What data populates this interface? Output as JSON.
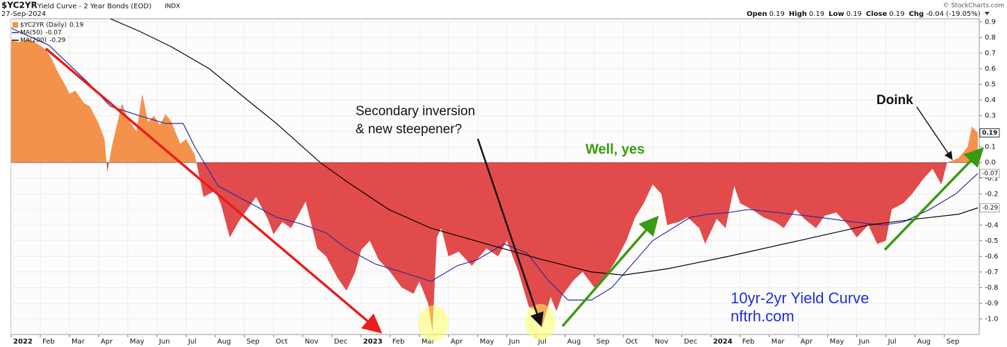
{
  "header": {
    "symbol": "$YC2YR",
    "description": "Yield Curve - 2 Year Bonds (EOD)",
    "exchange": "INDX",
    "date": "27-Sep-2024",
    "copyright": "© StockCharts.com",
    "quote": [
      {
        "label": "Open",
        "value": "0.19"
      },
      {
        "label": "High",
        "value": "0.19"
      },
      {
        "label": "Low",
        "value": "0.19"
      },
      {
        "label": "Close",
        "value": "0.19"
      },
      {
        "label": "Chg",
        "value": "-0.04 (-19.05%)"
      }
    ]
  },
  "chart_data": {
    "type": "area",
    "annotations": [
      "Secondary inversion",
      "& new steepener?",
      "Well, yes",
      "Doink",
      "10yr-2yr Yield Curve",
      "nftrh.com"
    ],
    "xlim": [
      0,
      33.2
    ],
    "ylim": [
      -1.1,
      0.92
    ],
    "grid": true,
    "xticks": [
      {
        "value": 0,
        "label": "2022"
      },
      {
        "value": 1,
        "label": "Feb"
      },
      {
        "value": 2,
        "label": "Mar"
      },
      {
        "value": 3,
        "label": "Apr"
      },
      {
        "value": 4,
        "label": "May"
      },
      {
        "value": 5,
        "label": "Jun"
      },
      {
        "value": 6,
        "label": "Jul"
      },
      {
        "value": 7,
        "label": "Aug"
      },
      {
        "value": 8,
        "label": "Sep"
      },
      {
        "value": 9,
        "label": "Oct"
      },
      {
        "value": 10,
        "label": "Nov"
      },
      {
        "value": 11,
        "label": "Dec"
      },
      {
        "value": 12,
        "label": "2023"
      },
      {
        "value": 13,
        "label": "Feb"
      },
      {
        "value": 14,
        "label": "Mar"
      },
      {
        "value": 15,
        "label": "Apr"
      },
      {
        "value": 16,
        "label": "May"
      },
      {
        "value": 17,
        "label": "Jun"
      },
      {
        "value": 18,
        "label": "Jul"
      },
      {
        "value": 19,
        "label": "Aug"
      },
      {
        "value": 20,
        "label": "Sep"
      },
      {
        "value": 21,
        "label": "Oct"
      },
      {
        "value": 22,
        "label": "Nov"
      },
      {
        "value": 23,
        "label": "Dec"
      },
      {
        "value": 24,
        "label": "2024"
      },
      {
        "value": 25,
        "label": "Feb"
      },
      {
        "value": 26,
        "label": "Mar"
      },
      {
        "value": 27,
        "label": "Apr"
      },
      {
        "value": 28,
        "label": "May"
      },
      {
        "value": 29,
        "label": "Jun"
      },
      {
        "value": 30,
        "label": "Jul"
      },
      {
        "value": 31,
        "label": "Aug"
      },
      {
        "value": 32,
        "label": "Sep"
      }
    ],
    "yticks": [
      0.9,
      0.8,
      0.7,
      0.6,
      0.5,
      0.4,
      0.3,
      0.2,
      0.1,
      {
        "value": 0,
        "label": "0.0"
      },
      -0.1,
      -0.2,
      -0.3,
      -0.4,
      -0.5,
      -0.6,
      -0.7,
      -0.8,
      -0.9,
      {
        "value": -1,
        "label": "-1.0"
      }
    ],
    "series": [
      {
        "name": "$YC2YR (Daily)",
        "color": "#f4924c",
        "negative_color": "#e24b4b",
        "x": [
          0,
          0.3,
          0.6,
          0.9,
          1.2,
          1.4,
          1.6,
          1.9,
          2.0,
          2.2,
          2.5,
          2.7,
          3.0,
          3.2,
          3.3,
          3.45,
          3.6,
          3.8,
          4.0,
          4.3,
          4.5,
          4.7,
          4.9,
          5.1,
          5.3,
          5.5,
          5.8,
          6.0,
          6.3,
          6.6,
          6.8,
          7.0,
          7.2,
          7.5,
          7.8,
          8.1,
          8.4,
          8.8,
          9.0,
          9.3,
          9.6,
          10.1,
          10.5,
          10.8,
          11.2,
          11.5,
          11.8,
          12.0,
          12.3,
          12.6,
          13.0,
          13.4,
          13.8,
          14.0,
          14.3,
          14.45,
          14.6,
          14.75,
          15.0,
          15.35,
          15.8,
          16.3,
          16.7,
          17.0,
          17.4,
          17.75,
          18.0,
          18.2,
          18.5,
          18.7,
          18.9,
          19.3,
          19.6,
          20.0,
          20.3,
          20.7,
          21.1,
          21.4,
          21.7,
          22.0,
          22.3,
          22.5,
          22.9,
          23.2,
          23.6,
          23.8,
          24.2,
          24.5,
          24.8,
          25.0,
          25.4,
          25.8,
          26.2,
          26.5,
          26.9,
          27.2,
          27.6,
          27.9,
          28.3,
          28.7,
          29.0,
          29.4,
          29.7,
          30.0,
          30.2,
          30.6,
          30.9,
          31.3,
          31.6,
          31.9,
          32.1,
          32.5,
          32.8,
          32.95,
          33.15
        ],
        "values": [
          0.78,
          0.77,
          0.79,
          0.76,
          0.72,
          0.66,
          0.58,
          0.48,
          0.44,
          0.46,
          0.38,
          0.36,
          0.25,
          0.15,
          -0.06,
          0.1,
          0.22,
          0.38,
          0.28,
          0.2,
          0.44,
          0.26,
          0.3,
          0.24,
          0.31,
          0.26,
          0.12,
          0.15,
          0.05,
          -0.22,
          -0.2,
          -0.18,
          -0.27,
          -0.48,
          -0.38,
          -0.3,
          -0.22,
          -0.36,
          -0.46,
          -0.38,
          -0.42,
          -0.25,
          -0.55,
          -0.6,
          -0.74,
          -0.82,
          -0.7,
          -0.56,
          -0.5,
          -0.62,
          -0.7,
          -0.8,
          -0.84,
          -0.76,
          -0.9,
          -1.08,
          -0.48,
          -0.42,
          -0.6,
          -0.57,
          -0.66,
          -0.55,
          -0.6,
          -0.5,
          -0.7,
          -0.92,
          -0.95,
          -1.06,
          -0.86,
          -0.95,
          -0.85,
          -0.75,
          -0.7,
          -0.8,
          -0.75,
          -0.64,
          -0.5,
          -0.35,
          -0.26,
          -0.14,
          -0.2,
          -0.4,
          -0.38,
          -0.35,
          -0.42,
          -0.52,
          -0.36,
          -0.42,
          -0.15,
          -0.26,
          -0.3,
          -0.35,
          -0.38,
          -0.42,
          -0.3,
          -0.36,
          -0.42,
          -0.34,
          -0.32,
          -0.4,
          -0.48,
          -0.4,
          -0.52,
          -0.5,
          -0.3,
          -0.26,
          -0.2,
          -0.1,
          -0.04,
          -0.14,
          0.0,
          0.03,
          0.1,
          0.23,
          0.19
        ]
      },
      {
        "name": "MA(50)",
        "color": "#2a2aa0",
        "x": [
          0,
          1.3,
          2.7,
          3.4,
          4.4,
          5.3,
          5.9,
          6.3,
          7.1,
          8.2,
          9.1,
          9.9,
          10.8,
          11.5,
          12.5,
          13.4,
          14.4,
          15.3,
          16.0,
          16.9,
          17.7,
          18.4,
          19.1,
          19.9,
          20.6,
          21.3,
          22.0,
          22.6,
          23.3,
          23.9,
          24.6,
          25.3,
          26.3,
          27.7,
          28.9,
          29.9,
          30.6,
          31.5,
          32.4,
          33.15
        ],
        "values": [
          0.86,
          0.75,
          0.5,
          0.36,
          0.3,
          0.25,
          0.25,
          0.1,
          -0.15,
          -0.26,
          -0.35,
          -0.39,
          -0.45,
          -0.55,
          -0.65,
          -0.7,
          -0.76,
          -0.66,
          -0.62,
          -0.52,
          -0.58,
          -0.75,
          -0.88,
          -0.88,
          -0.8,
          -0.65,
          -0.5,
          -0.43,
          -0.35,
          -0.33,
          -0.32,
          -0.3,
          -0.32,
          -0.35,
          -0.38,
          -0.4,
          -0.38,
          -0.3,
          -0.2,
          -0.07
        ]
      },
      {
        "name": "MA(200)",
        "color": "#000000",
        "x": [
          3.4,
          4.4,
          5.5,
          6.8,
          8.1,
          9.1,
          10.6,
          11.5,
          12.95,
          14.4,
          16.3,
          18.2,
          19.9,
          21.0,
          22.5,
          24.6,
          27.0,
          29.4,
          31.1,
          32.5,
          33.15
        ],
        "values": [
          0.92,
          0.84,
          0.74,
          0.6,
          0.4,
          0.25,
          0.0,
          -0.12,
          -0.3,
          -0.42,
          -0.52,
          -0.62,
          -0.7,
          -0.72,
          -0.68,
          -0.6,
          -0.5,
          -0.4,
          -0.36,
          -0.33,
          -0.29
        ]
      }
    ]
  }
}
